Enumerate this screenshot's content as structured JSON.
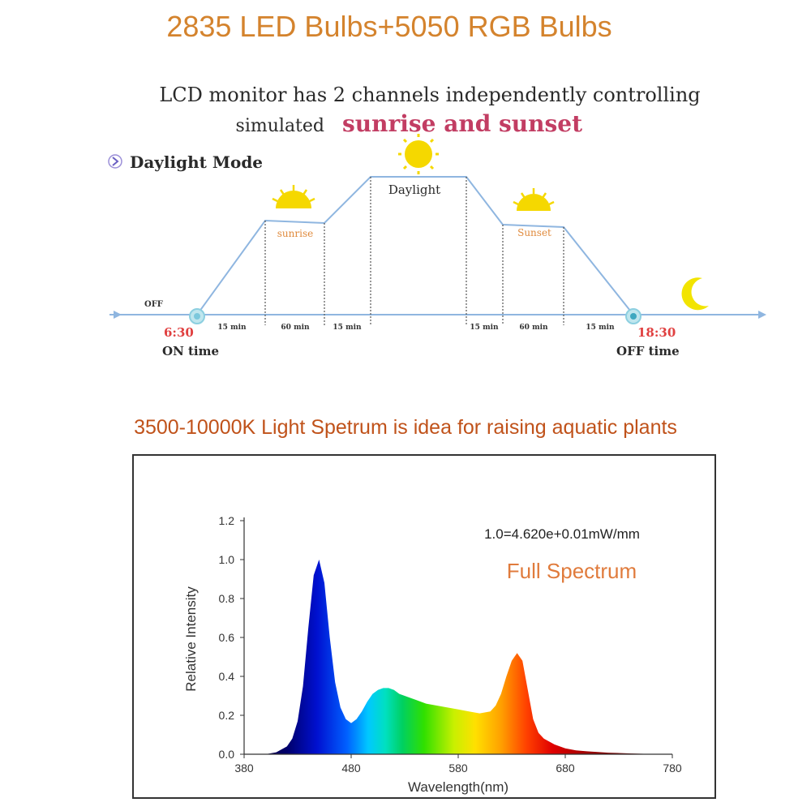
{
  "headline": "2835 LED Bulbs+5050 RGB Bulbs",
  "diagram": {
    "line1": "LCD monitor has 2 channels independently controlling",
    "line2_prefix": "simulated",
    "line2_highlight": "sunrise and sunset",
    "mode_label": "Daylight Mode",
    "off_label": "OFF",
    "phase_sunrise": "sunrise",
    "phase_daylight": "Daylight",
    "phase_sunset": "Sunset",
    "durations": [
      "15 min",
      "60 min",
      "15 min",
      "15 min",
      "60 min",
      "15 min"
    ],
    "on_time_value": "6:30",
    "on_time_label": "ON time",
    "off_time_value": "18:30",
    "off_time_label": "OFF time",
    "colors": {
      "line": "#8fb6e0",
      "accent": "#c23d63",
      "sun": "#f5d800",
      "moon": "#f2e400",
      "time": "#e04040",
      "phase": "#e08a3c"
    }
  },
  "spectrum_title": "3500-10000K Light Spetrum is idea for raising aquatic plants",
  "chart_data": {
    "type": "area",
    "title": "",
    "xlabel": "Wavelength(nm)",
    "ylabel": "Relative Intensity",
    "xlim": [
      380,
      780
    ],
    "ylim": [
      0,
      1.2
    ],
    "x_ticks": [
      380,
      480,
      580,
      680,
      780
    ],
    "y_ticks": [
      0.0,
      0.2,
      0.4,
      0.6,
      0.8,
      1.0,
      1.2
    ],
    "y_tick_labels": [
      "0.0",
      "0.2",
      "0.4",
      "0.6",
      "0.8",
      "1.0",
      "1.2"
    ],
    "annotation": "1.0=4.620e+0.01mW/mm",
    "legend_text": "Full Spectrum",
    "legend_color": "#e07b3c",
    "grid": false,
    "series": [
      {
        "x": [
          400,
          410,
          420,
          425,
          430,
          435,
          440,
          445,
          450,
          455,
          460,
          465,
          470,
          475,
          480,
          485,
          490,
          495,
          500,
          505,
          510,
          515,
          520,
          525,
          530,
          540,
          550,
          560,
          570,
          580,
          590,
          600,
          610,
          615,
          620,
          625,
          630,
          635,
          640,
          645,
          650,
          655,
          660,
          670,
          680,
          690,
          700,
          720,
          740,
          760,
          780
        ],
        "y": [
          0.0,
          0.01,
          0.04,
          0.08,
          0.17,
          0.35,
          0.65,
          0.92,
          1.0,
          0.88,
          0.6,
          0.37,
          0.24,
          0.18,
          0.16,
          0.18,
          0.22,
          0.27,
          0.31,
          0.33,
          0.34,
          0.34,
          0.33,
          0.31,
          0.3,
          0.28,
          0.26,
          0.25,
          0.24,
          0.23,
          0.22,
          0.21,
          0.22,
          0.25,
          0.31,
          0.4,
          0.48,
          0.52,
          0.48,
          0.33,
          0.18,
          0.11,
          0.08,
          0.05,
          0.03,
          0.02,
          0.015,
          0.008,
          0.004,
          0.001,
          0.0
        ]
      }
    ]
  }
}
